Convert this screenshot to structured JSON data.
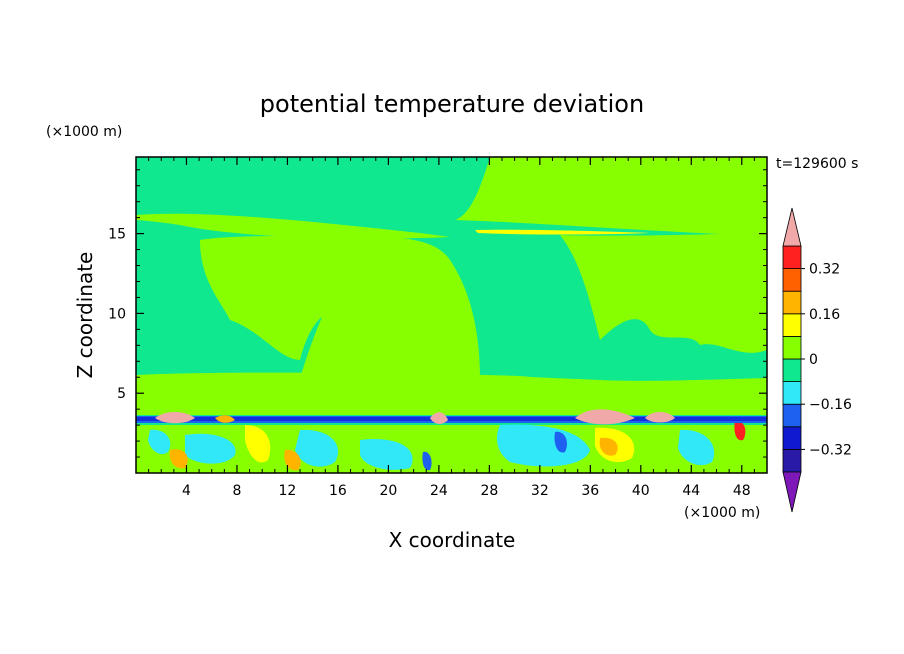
{
  "chart_data": {
    "type": "heatmap",
    "title": "potential temperature deviation",
    "xlabel": "X coordinate",
    "ylabel": "Z coordinate",
    "x_unit": "(×1000 m)",
    "y_unit": "(×1000 m)",
    "time_label": "t=129600 s",
    "xlim": [
      0,
      50
    ],
    "ylim": [
      0,
      19.8
    ],
    "x_ticks": [
      "4",
      "8",
      "12",
      "16",
      "20",
      "24",
      "28",
      "32",
      "36",
      "40",
      "44",
      "48"
    ],
    "y_ticks": [
      "5",
      "10",
      "15"
    ],
    "colorbar": {
      "levels": [
        -0.4,
        -0.32,
        -0.24,
        -0.16,
        -0.08,
        0,
        0.08,
        0.16,
        0.24,
        0.32,
        0.4
      ],
      "tick_labels": [
        "0.32",
        "0.16",
        "0",
        "−0.16",
        "−0.32"
      ],
      "colors": [
        "#7f18b8",
        "#2a1aa8",
        "#1018d0",
        "#1e60f0",
        "#30e8f8",
        "#10e890",
        "#88ff00",
        "#ffff00",
        "#ffb400",
        "#ff6000",
        "#ff2020",
        "#f0a8a8"
      ],
      "extend": "both"
    }
  }
}
